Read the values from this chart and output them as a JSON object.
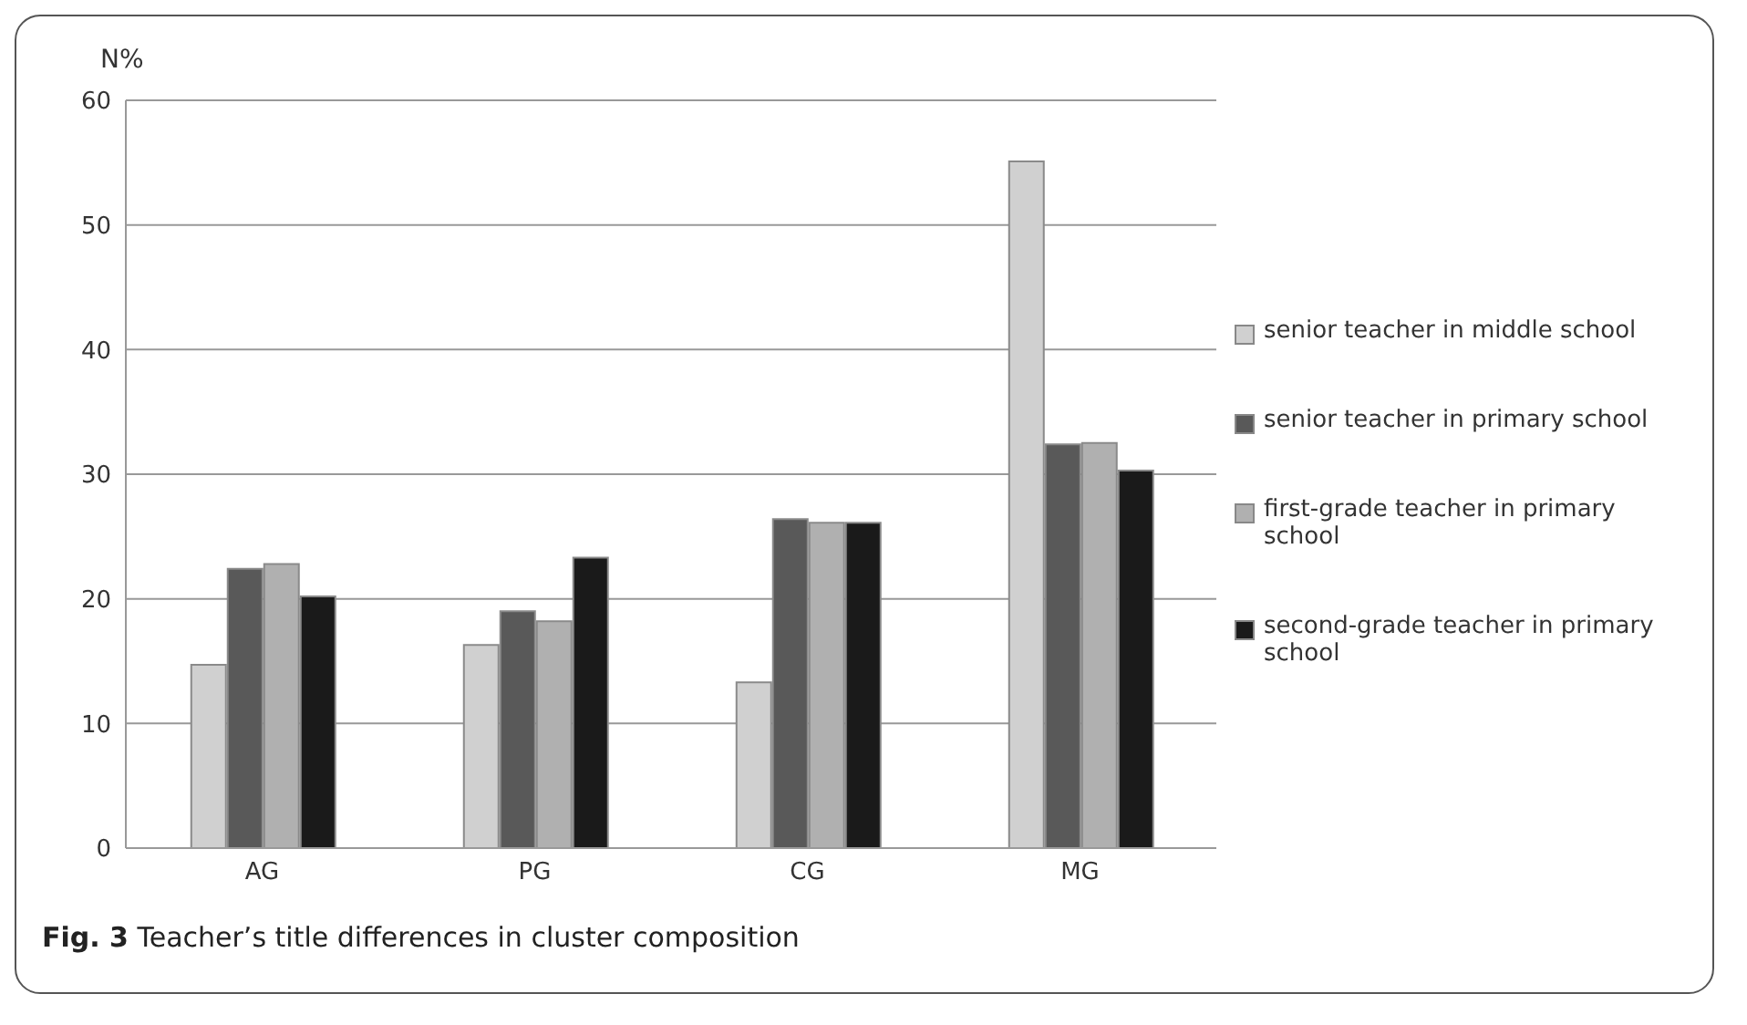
{
  "chart_data": {
    "type": "bar",
    "title": "Fig. 3 Teacher’s title differences in cluster composition",
    "ylabel": "N%",
    "categories": [
      "AG",
      "PG",
      "CG",
      "MG"
    ],
    "series": [
      {
        "name": "senior teacher in middle school",
        "color": "#d0d0d0",
        "values": [
          14.7,
          16.3,
          13.3,
          55.1
        ]
      },
      {
        "name": "senior teacher in primary school",
        "color": "#595959",
        "values": [
          22.4,
          19.0,
          26.4,
          32.4
        ]
      },
      {
        "name": "first-grade teacher in primary school",
        "color": "#b0b0b0",
        "values": [
          22.8,
          18.2,
          26.1,
          32.5
        ]
      },
      {
        "name": "second-grade teacher in primary school",
        "color": "#1a1a1a",
        "values": [
          20.2,
          23.3,
          26.1,
          30.3
        ]
      }
    ],
    "ylim": [
      0,
      60
    ],
    "yticks": [
      0,
      10,
      20,
      30,
      40,
      50,
      60
    ],
    "grid": "y",
    "legend": "right"
  }
}
